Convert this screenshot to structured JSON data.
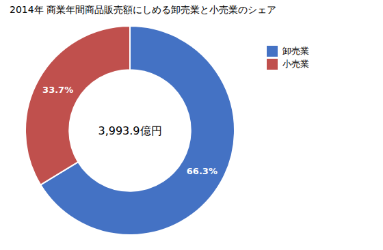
{
  "chart_data": {
    "type": "pie",
    "title": "2014年 商業年間商品販売額にしめる卸売業と小売業のシェア",
    "categories": [
      "卸売業",
      "小売業"
    ],
    "values": [
      66.3,
      33.7
    ],
    "value_labels": [
      "66.3%",
      "33.7%"
    ],
    "colors": [
      "#4472C4",
      "#C0504D"
    ],
    "data_labels": true,
    "annotations": [
      "3,993.9億円"
    ],
    "legend": "right"
  }
}
